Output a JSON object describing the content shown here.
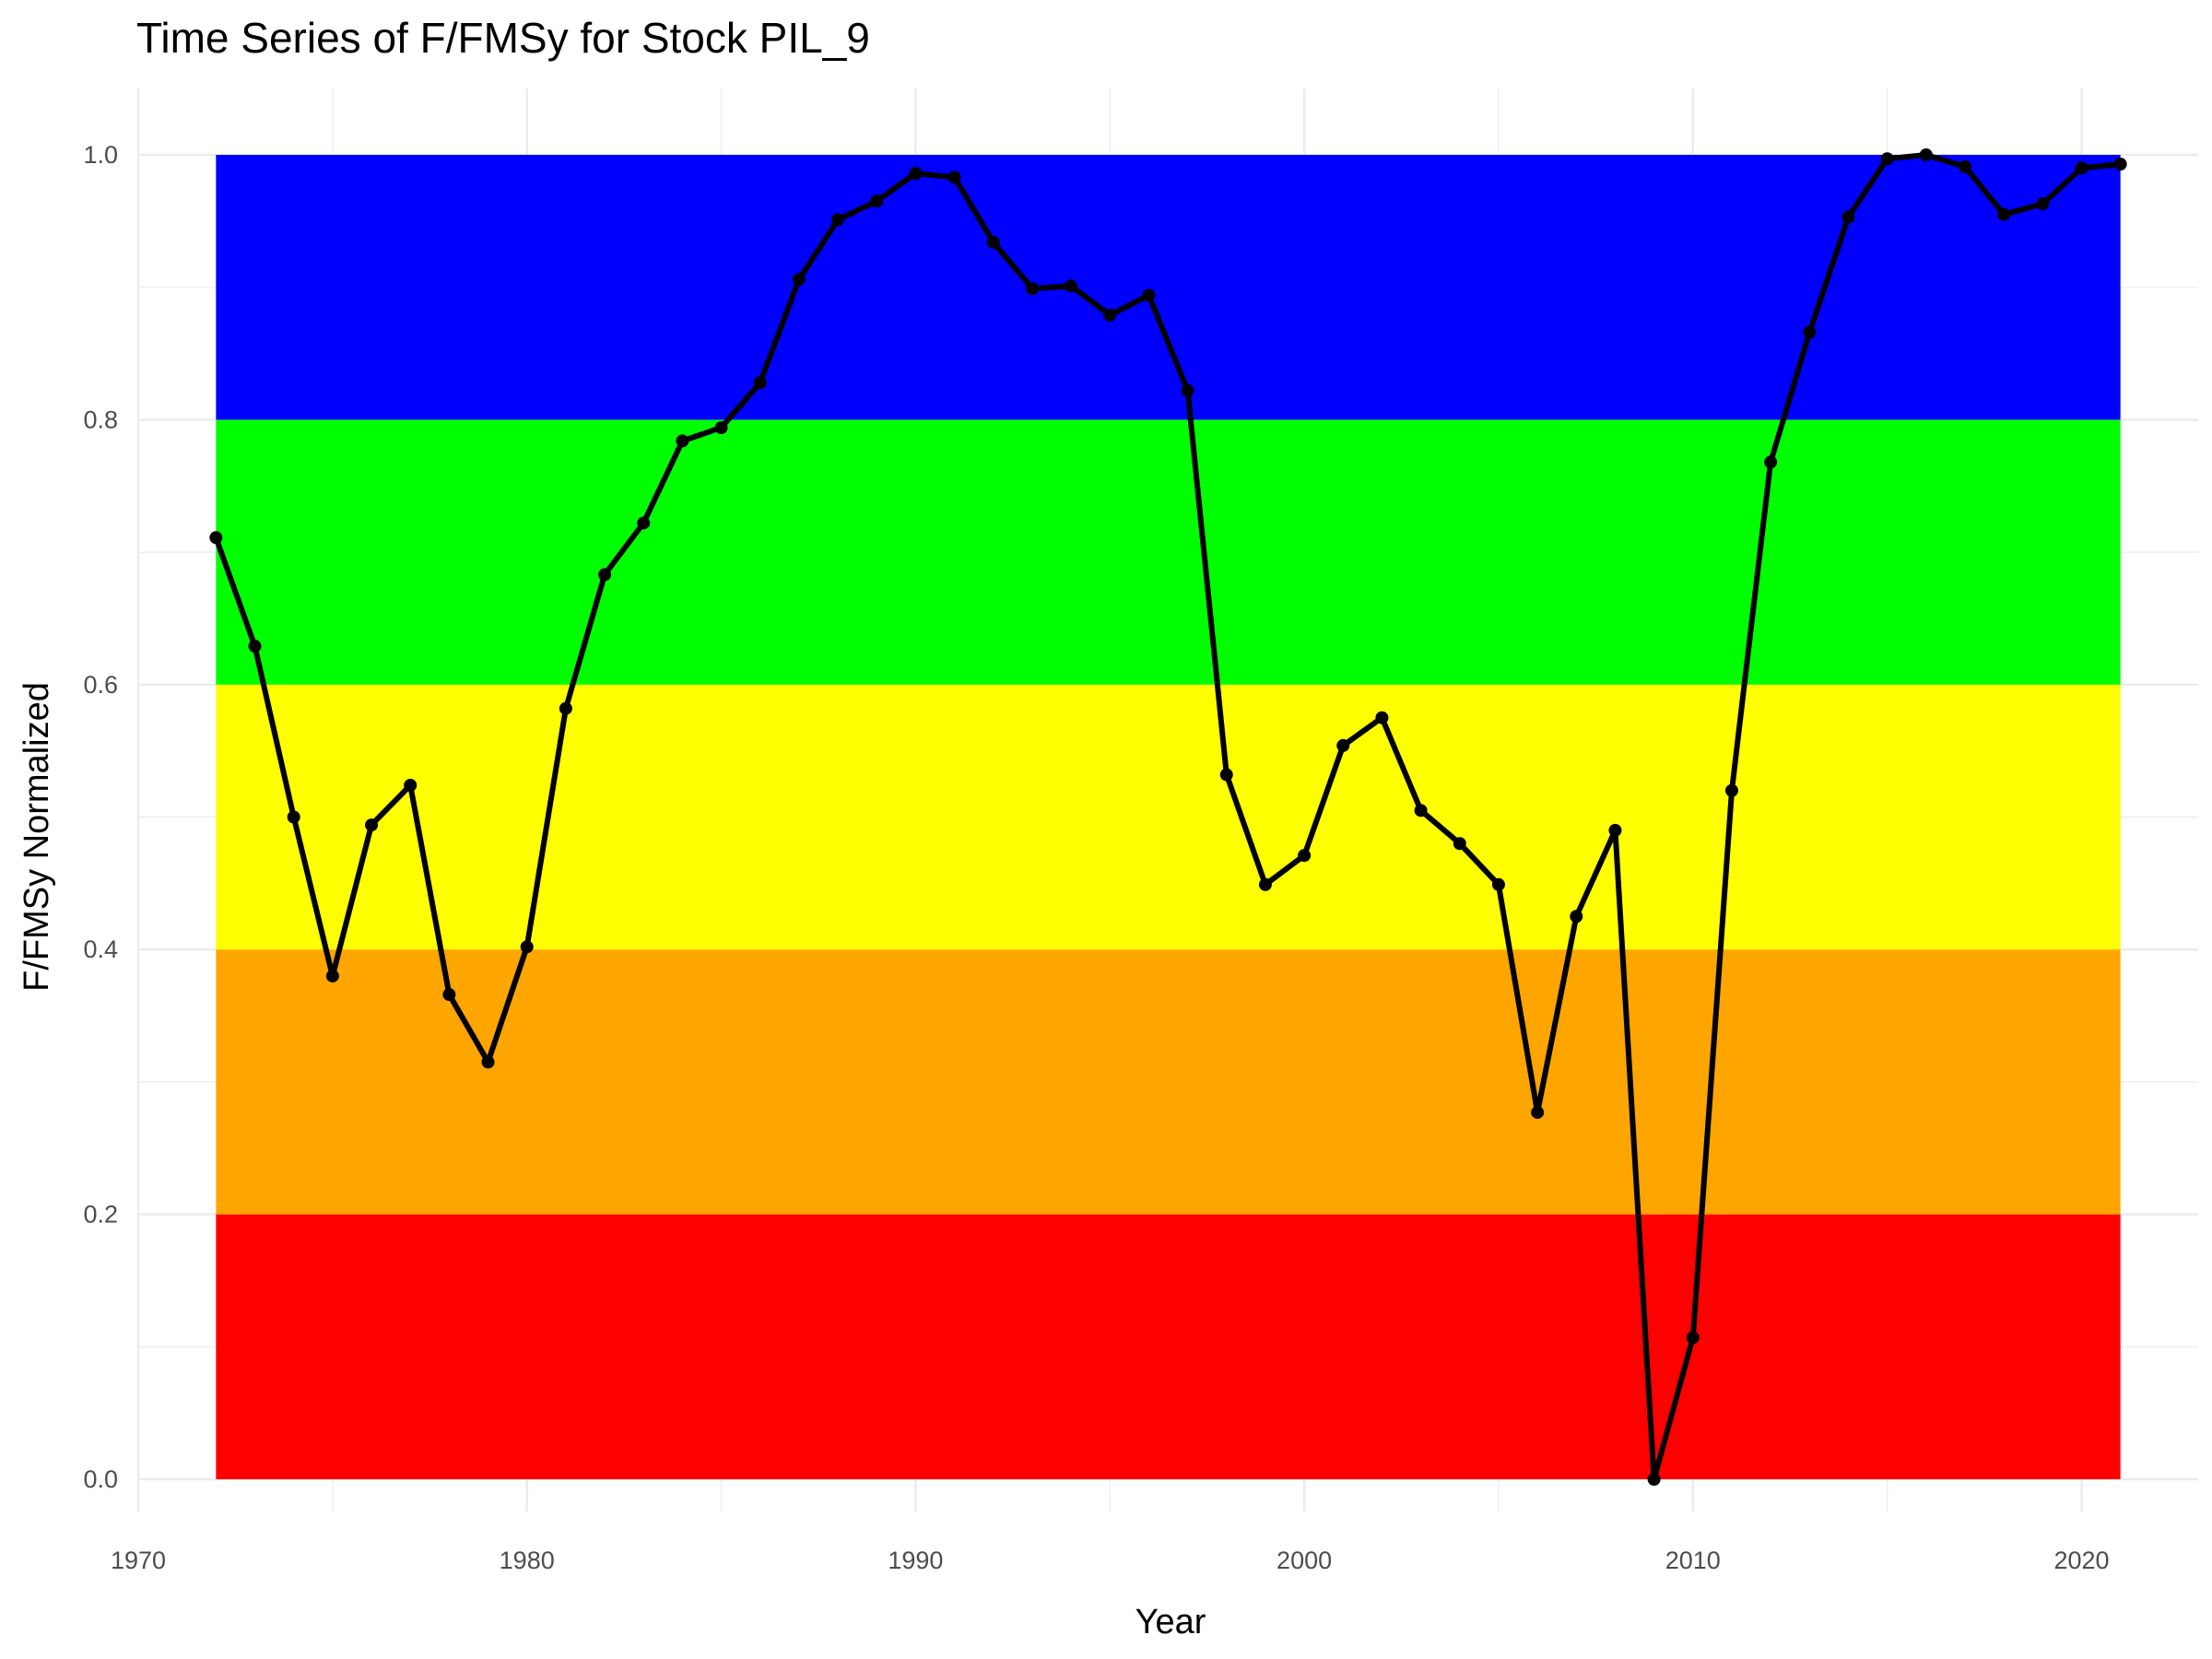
{
  "chart_data": {
    "type": "line",
    "title": "Time Series of F/FMSy for Stock PIL_9",
    "xlabel": "Year",
    "ylabel": "F/FMSy Normalized",
    "xlim": [
      1970,
      2023
    ],
    "ylim": [
      0,
      1
    ],
    "x_ticks": [
      1970,
      1980,
      1990,
      2000,
      2010,
      2020
    ],
    "y_ticks": [
      "0.0",
      "0.2",
      "0.4",
      "0.6",
      "0.8",
      "1.0"
    ],
    "grid": true,
    "background_bands": [
      {
        "from": 0.0,
        "to": 0.2,
        "color": "#ff0000"
      },
      {
        "from": 0.2,
        "to": 0.4,
        "color": "#ffa500"
      },
      {
        "from": 0.4,
        "to": 0.6,
        "color": "#ffff00"
      },
      {
        "from": 0.6,
        "to": 0.8,
        "color": "#00ff00"
      },
      {
        "from": 0.8,
        "to": 1.0,
        "color": "#0000ff"
      }
    ],
    "band_x_range": [
      1972,
      2021
    ],
    "line_color": "#000000",
    "series": [
      {
        "x": [
          1972,
          1973,
          1974,
          1975,
          1976,
          1977,
          1978,
          1979,
          1980,
          1981,
          1982,
          1983,
          1984,
          1985,
          1986,
          1987,
          1988,
          1989,
          1990,
          1991,
          1992,
          1993,
          1994,
          1995,
          1996,
          1997,
          1998,
          1999,
          2000,
          2001,
          2002,
          2003,
          2004,
          2005,
          2006,
          2007,
          2008,
          2009,
          2010,
          2011,
          2012,
          2013,
          2014,
          2015,
          2016,
          2017,
          2018,
          2019,
          2020,
          2021
        ],
        "y": [
          0.711,
          0.629,
          0.5,
          0.38,
          0.494,
          0.524,
          0.366,
          0.315,
          0.402,
          0.582,
          0.683,
          0.722,
          0.784,
          0.794,
          0.828,
          0.906,
          0.951,
          0.965,
          0.986,
          0.983,
          0.934,
          0.899,
          0.901,
          0.879,
          0.894,
          0.822,
          0.532,
          0.449,
          0.471,
          0.554,
          0.575,
          0.505,
          0.48,
          0.449,
          0.277,
          0.425,
          0.49,
          0.0,
          0.107,
          0.52,
          0.768,
          0.866,
          0.953,
          0.997,
          1.0,
          0.991,
          0.955,
          0.963,
          0.99,
          0.993
        ]
      }
    ]
  }
}
